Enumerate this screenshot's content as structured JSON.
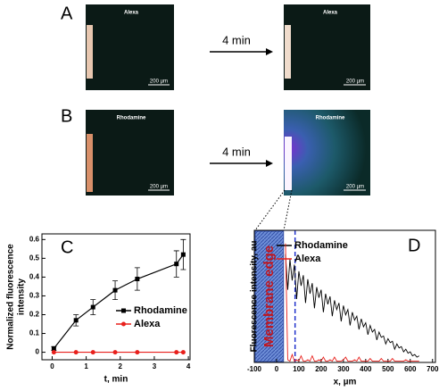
{
  "panels": {
    "a": {
      "label": "A",
      "left_title": "Alexa",
      "right_title": "Alexa",
      "left_scale": "200 µm",
      "right_scale": "200 µm",
      "arrow": "4 min"
    },
    "b": {
      "label": "B",
      "left_title": "Rhodamine",
      "right_title": "Rhodamine",
      "left_scale": "200 µm",
      "right_scale": "200 µm",
      "arrow": "4 min"
    }
  },
  "chart_data": [
    {
      "type": "line",
      "panel_label": "C",
      "xlabel": "t, min",
      "ylabel": [
        "Normalized fluorescence",
        "intensity"
      ],
      "x": [
        0.05,
        0.7,
        1.2,
        1.85,
        2.5,
        3.65,
        3.85
      ],
      "series": [
        {
          "name": "Rhodamine",
          "color": "#000000",
          "marker": "square",
          "values": [
            0.02,
            0.17,
            0.24,
            0.33,
            0.39,
            0.47,
            0.52
          ],
          "errors": [
            0.01,
            0.03,
            0.04,
            0.05,
            0.06,
            0.07,
            0.08
          ]
        },
        {
          "name": "Alexa",
          "color": "#e8201c",
          "marker": "circle",
          "values": [
            0,
            0,
            0,
            0,
            0,
            0,
            0
          ]
        }
      ],
      "xlim": [
        -0.3,
        4.05
      ],
      "ylim": [
        -0.04,
        0.63
      ],
      "xticks": [
        0,
        1,
        2,
        3,
        4
      ],
      "yticks": [
        0.0,
        0.1,
        0.2,
        0.3,
        0.4,
        0.5,
        0.6
      ]
    },
    {
      "type": "line",
      "panel_label": "D",
      "xlabel": "x, µm",
      "ylabel": [
        "Fluorescence intensity, au"
      ],
      "annotation": "Membrane edge",
      "x": [
        40,
        50,
        60,
        70,
        80,
        90,
        100,
        110,
        120,
        130,
        140,
        150,
        160,
        170,
        180,
        190,
        200,
        210,
        220,
        230,
        240,
        250,
        260,
        270,
        280,
        290,
        300,
        310,
        320,
        330,
        340,
        350,
        360,
        370,
        380,
        390,
        400,
        410,
        420,
        430,
        440,
        450,
        460,
        470,
        480,
        490,
        500,
        510,
        520,
        530,
        540,
        550,
        560,
        570,
        580,
        590,
        600,
        610,
        620,
        630,
        640
      ],
      "series": [
        {
          "name": "Rhodamine",
          "color": "#000000",
          "values": [
            0.82,
            0.55,
            0.78,
            0.62,
            0.74,
            0.48,
            0.69,
            0.58,
            0.66,
            0.45,
            0.63,
            0.52,
            0.6,
            0.41,
            0.57,
            0.49,
            0.55,
            0.38,
            0.52,
            0.44,
            0.5,
            0.35,
            0.47,
            0.4,
            0.45,
            0.31,
            0.43,
            0.36,
            0.4,
            0.28,
            0.38,
            0.32,
            0.35,
            0.25,
            0.33,
            0.27,
            0.3,
            0.21,
            0.28,
            0.23,
            0.25,
            0.17,
            0.23,
            0.19,
            0.2,
            0.14,
            0.18,
            0.15,
            0.16,
            0.1,
            0.14,
            0.11,
            0.12,
            0.08,
            0.1,
            0.07,
            0.08,
            0.05,
            0.06,
            0.04,
            0.05
          ]
        },
        {
          "name": "Alexa",
          "color": "#e8201c",
          "values": [
            0.9,
            0.02,
            0.01,
            0.06,
            0.01,
            0.02,
            0.01,
            0.05,
            0.01,
            0.01,
            0.02,
            0.01,
            0.05,
            0.01,
            0.01,
            0.02,
            0.01,
            0.04,
            0.01,
            0.01,
            0.02,
            0.01,
            0.04,
            0.01,
            0.01,
            0.01,
            0.02,
            0.04,
            0.01,
            0.01,
            0.01,
            0.02,
            0.01,
            0.04,
            0.01,
            0.01,
            0.01,
            0.01,
            0.03,
            0.01,
            0.01,
            0.01,
            0.01,
            0.03,
            0.01,
            0.01,
            0.01,
            0.01,
            0.03,
            0.01,
            0.01,
            0.01,
            0.01,
            0.01,
            0.02,
            0.01,
            0.01,
            0.01,
            0.01,
            0.01,
            0.01
          ]
        }
      ],
      "xlim": [
        -100,
        713
      ],
      "ylim": [
        0,
        1
      ],
      "xticks": [
        -100,
        0,
        100,
        200,
        300,
        400,
        500,
        600,
        700
      ]
    }
  ]
}
